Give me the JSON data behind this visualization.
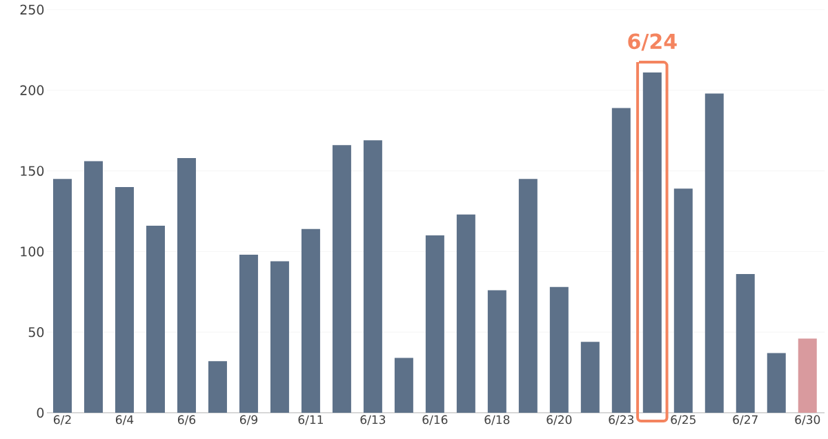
{
  "chart_data": {
    "type": "bar",
    "categories": [
      "6/2",
      null,
      "6/4",
      null,
      "6/6",
      null,
      "6/9",
      null,
      "6/11",
      null,
      "6/13",
      null,
      "6/16",
      null,
      "6/18",
      null,
      "6/20",
      null,
      "6/23",
      null,
      "6/25",
      null,
      "6/27",
      null,
      "6/30"
    ],
    "values": [
      145,
      156,
      140,
      116,
      158,
      32,
      98,
      94,
      114,
      166,
      169,
      34,
      110,
      123,
      76,
      145,
      78,
      44,
      189,
      211,
      139,
      198,
      86,
      37,
      46
    ],
    "colors": [
      "#5d7189",
      "#5d7189",
      "#5d7189",
      "#5d7189",
      "#5d7189",
      "#5d7189",
      "#5d7189",
      "#5d7189",
      "#5d7189",
      "#5d7189",
      "#5d7189",
      "#5d7189",
      "#5d7189",
      "#5d7189",
      "#5d7189",
      "#5d7189",
      "#5d7189",
      "#5d7189",
      "#5d7189",
      "#5d7189",
      "#5d7189",
      "#5d7189",
      "#5d7189",
      "#5d7189",
      "#d99a9e"
    ],
    "ylim": [
      0,
      250
    ],
    "yticks": [
      0,
      50,
      100,
      150,
      200,
      250
    ],
    "grid": "y",
    "annotations": [
      {
        "text": "6/24",
        "y": 211
      }
    ]
  }
}
